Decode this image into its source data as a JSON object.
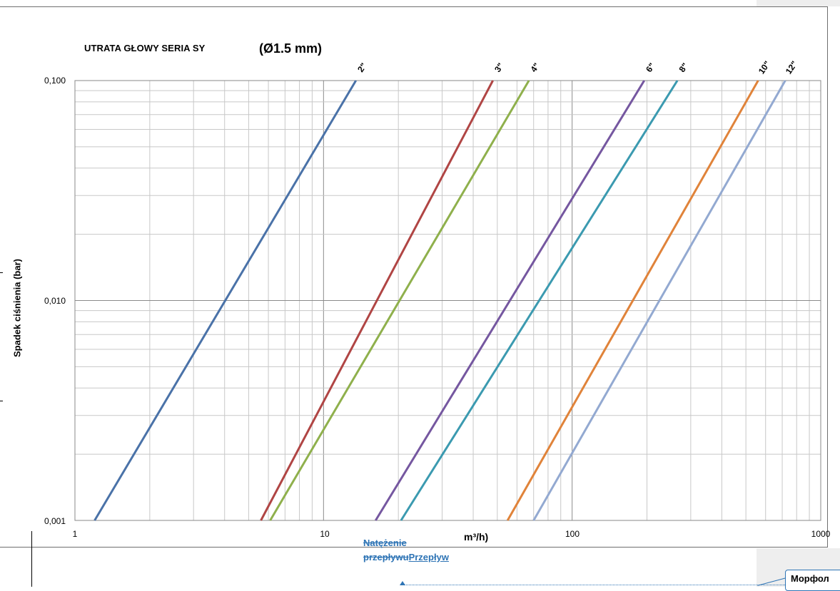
{
  "chart_data": {
    "type": "line",
    "title": "UTRATA GŁOWY SERIA SY",
    "subtitle": "(Ø1.5 mm)",
    "xlabel": "m³/h)",
    "ylabel": "Spadek ciśnienia  (bar)",
    "x_scale": "log",
    "y_scale": "log",
    "xlim": [
      1,
      1000
    ],
    "ylim": [
      0.001,
      0.1
    ],
    "x_ticks": [
      "1",
      "10",
      "100",
      "1000"
    ],
    "y_ticks": [
      "0,001",
      "0,010",
      "0,100"
    ],
    "grid": true,
    "series": [
      {
        "name": "2\"",
        "color": "#4a72a8",
        "x": [
          1.2,
          13.5
        ],
        "y": [
          0.001,
          0.1
        ]
      },
      {
        "name": "3\"",
        "color": "#b04544",
        "x": [
          5.6,
          48
        ],
        "y": [
          0.001,
          0.1
        ]
      },
      {
        "name": "4\"",
        "color": "#8fb04c",
        "x": [
          6.1,
          67
        ],
        "y": [
          0.001,
          0.1
        ]
      },
      {
        "name": "6\"",
        "color": "#7557a0",
        "x": [
          16.2,
          195
        ],
        "y": [
          0.001,
          0.1
        ]
      },
      {
        "name": "8\"",
        "color": "#3b9ab0",
        "x": [
          20.5,
          265
        ],
        "y": [
          0.001,
          0.1
        ]
      },
      {
        "name": "10\"",
        "color": "#e0833a",
        "x": [
          55,
          560
        ],
        "y": [
          0.001,
          0.1
        ]
      },
      {
        "name": "12\"",
        "color": "#93a9d1",
        "x": [
          70,
          720
        ],
        "y": [
          0.001,
          0.1
        ]
      }
    ]
  },
  "revision": {
    "deleted_text": "Natężenie przepływu",
    "inserted_text": "Przepływ",
    "comment_text": "Морфол"
  },
  "colors": {
    "revision": "#2e74b5",
    "grid": "#c8c8c8",
    "frame": "#6e6e6e"
  }
}
